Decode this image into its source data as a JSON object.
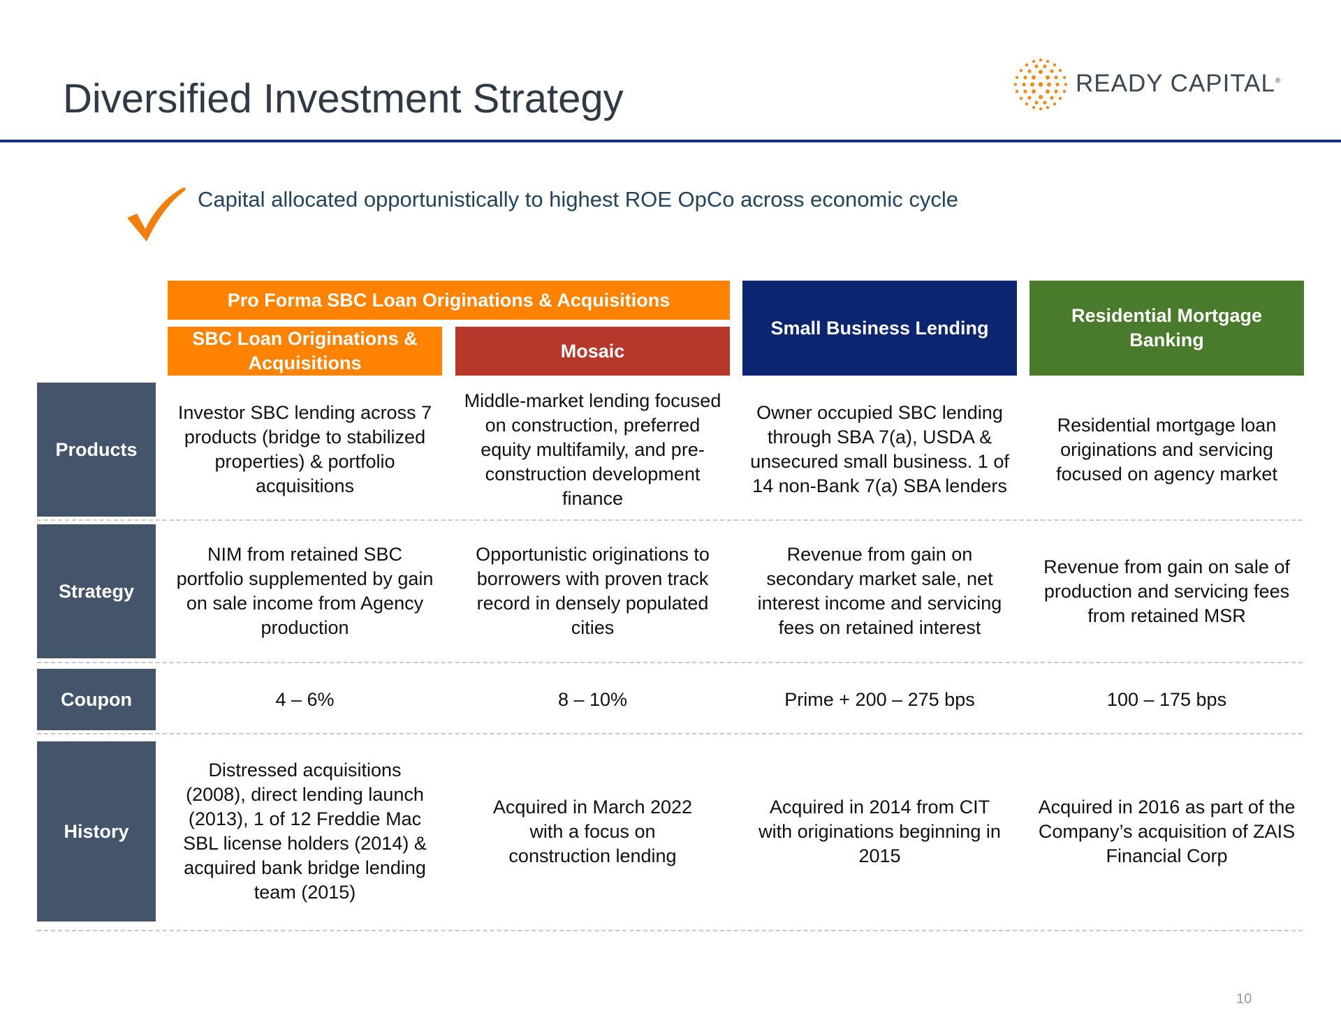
{
  "title": "Diversified Investment Strategy",
  "logo": {
    "text": "READY CAPITAL",
    "mark": "®"
  },
  "subtitle": "Capital allocated opportunistically to highest ROE OpCo across economic cycle",
  "colors": {
    "orange": "#ff8200",
    "red": "#b5382a",
    "navy": "#0c2570",
    "green": "#4a7a2b",
    "label_bg": "#44546a",
    "rule": "#1b2f7a"
  },
  "headers": {
    "pro_forma": "Pro Forma SBC Loan Originations & Acquisitions",
    "sbc": "SBC Loan Originations & Acquisitions",
    "mosaic": "Mosaic",
    "small_business": "Small Business Lending",
    "residential": "Residential Mortgage Banking"
  },
  "rows": {
    "products": {
      "label": "Products",
      "sbc": "Investor SBC lending across 7 products (bridge to stabilized properties) & portfolio acquisitions",
      "mosaic": "Middle-market lending focused on construction, preferred equity multifamily, and pre-construction development finance",
      "small_business": "Owner occupied SBC lending through SBA 7(a), USDA & unsecured small business. 1 of 14 non-Bank 7(a) SBA lenders",
      "residential": "Residential mortgage loan originations and servicing focused on agency market"
    },
    "strategy": {
      "label": "Strategy",
      "sbc": "NIM from retained SBC portfolio supplemented by gain on sale income from Agency production",
      "mosaic": "Opportunistic originations to borrowers with proven track record in densely populated cities",
      "small_business": "Revenue from gain on secondary market sale, net interest income and servicing fees on retained interest",
      "residential": "Revenue from gain on sale of production and servicing fees from retained MSR"
    },
    "coupon": {
      "label": "Coupon",
      "sbc": "4 – 6%",
      "mosaic": "8 – 10%",
      "small_business": "Prime + 200 – 275 bps",
      "residential": "100 – 175 bps"
    },
    "history": {
      "label": "History",
      "sbc": "Distressed acquisitions (2008), direct lending launch (2013), 1 of 12 Freddie Mac SBL license holders (2014) & acquired bank bridge lending team (2015)",
      "mosaic": "Acquired in March 2022 with a focus on construction lending",
      "small_business": "Acquired in 2014 from CIT with originations beginning in 2015",
      "residential": "Acquired in 2016 as part of the Company’s acquisition of ZAIS Financial Corp"
    }
  },
  "page_number": "10"
}
